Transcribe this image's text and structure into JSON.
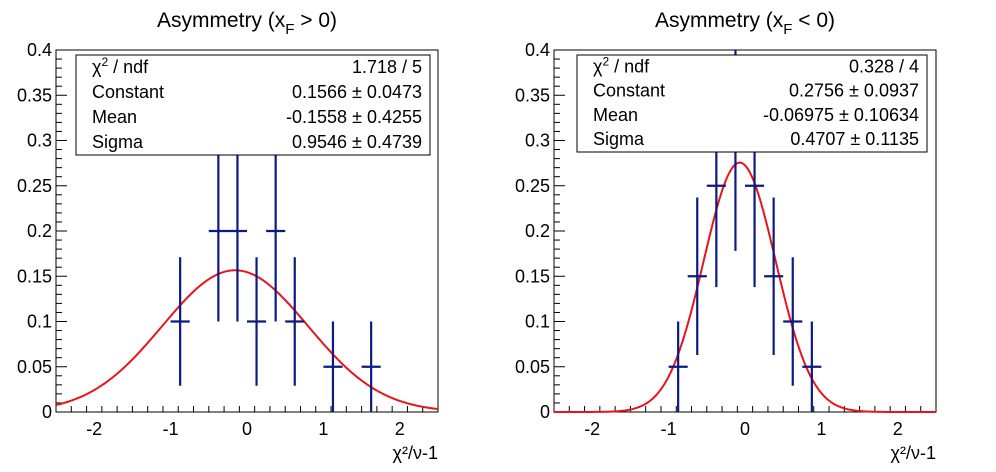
{
  "colors": {
    "data": "#0b1b82",
    "fit": "#e8141c",
    "axes": "#000000",
    "background": "#ffffff"
  },
  "chart_data": [
    {
      "type": "scatter",
      "title_main": "Asymmetry (x",
      "title_sub": "F",
      "title_tail": " > 0)",
      "xlabel": "χ²/ν-1",
      "xlim": [
        -2.5,
        2.5
      ],
      "ylim": [
        0,
        0.4
      ],
      "x_ticks": [
        "-2",
        "-1",
        "0",
        "1",
        "2"
      ],
      "y_ticks": [
        "0",
        "0.05",
        "0.1",
        "0.15",
        "0.2",
        "0.25",
        "0.3",
        "0.35",
        "0.4"
      ],
      "bin_width": 0.25,
      "points": [
        {
          "x": -0.875,
          "y": 0.1,
          "err": 0.071
        },
        {
          "x": -0.375,
          "y": 0.2,
          "err": 0.1
        },
        {
          "x": -0.125,
          "y": 0.2,
          "err": 0.1
        },
        {
          "x": 0.125,
          "y": 0.1,
          "err": 0.071
        },
        {
          "x": 0.375,
          "y": 0.2,
          "err": 0.1
        },
        {
          "x": 0.625,
          "y": 0.1,
          "err": 0.071
        },
        {
          "x": 1.125,
          "y": 0.05,
          "err": 0.05
        },
        {
          "x": 1.625,
          "y": 0.05,
          "err": 0.05
        }
      ],
      "fit": {
        "constant": 0.1566,
        "mean": -0.1558,
        "sigma": 0.9546
      },
      "stats": [
        {
          "label": "ndf",
          "value": "1.718 / 5",
          "is_chi2": true
        },
        {
          "label": "Constant",
          "value": "0.1566 ± 0.0473"
        },
        {
          "label": "Mean",
          "value": "-0.1558 ± 0.4255"
        },
        {
          "label": "Sigma",
          "value": "0.9546 ± 0.4739"
        }
      ]
    },
    {
      "type": "scatter",
      "title_main": "Asymmetry (x",
      "title_sub": "F",
      "title_tail": " < 0)",
      "xlabel": "χ²/ν-1",
      "xlim": [
        -2.5,
        2.5
      ],
      "ylim": [
        0,
        0.4
      ],
      "x_ticks": [
        "-2",
        "-1",
        "0",
        "1",
        "2"
      ],
      "y_ticks": [
        "0",
        "0.05",
        "0.1",
        "0.15",
        "0.2",
        "0.25",
        "0.3",
        "0.35",
        "0.4"
      ],
      "bin_width": 0.25,
      "points": [
        {
          "x": -0.875,
          "y": 0.05,
          "err": 0.05
        },
        {
          "x": -0.625,
          "y": 0.15,
          "err": 0.087
        },
        {
          "x": -0.375,
          "y": 0.25,
          "err": 0.112
        },
        {
          "x": -0.125,
          "y": 0.3,
          "err": 0.122
        },
        {
          "x": 0.125,
          "y": 0.25,
          "err": 0.112
        },
        {
          "x": 0.375,
          "y": 0.15,
          "err": 0.087
        },
        {
          "x": 0.625,
          "y": 0.1,
          "err": 0.071
        },
        {
          "x": 0.875,
          "y": 0.05,
          "err": 0.05
        }
      ],
      "fit": {
        "constant": 0.2756,
        "mean": -0.06975,
        "sigma": 0.4707
      },
      "stats": [
        {
          "label": "ndf",
          "value": "0.328 / 4",
          "is_chi2": true
        },
        {
          "label": "Constant",
          "value": "0.2756 ± 0.0937"
        },
        {
          "label": "Mean",
          "value": "-0.06975 ± 0.10634"
        },
        {
          "label": "Sigma",
          "value": "0.4707 ± 0.1135"
        }
      ]
    }
  ]
}
